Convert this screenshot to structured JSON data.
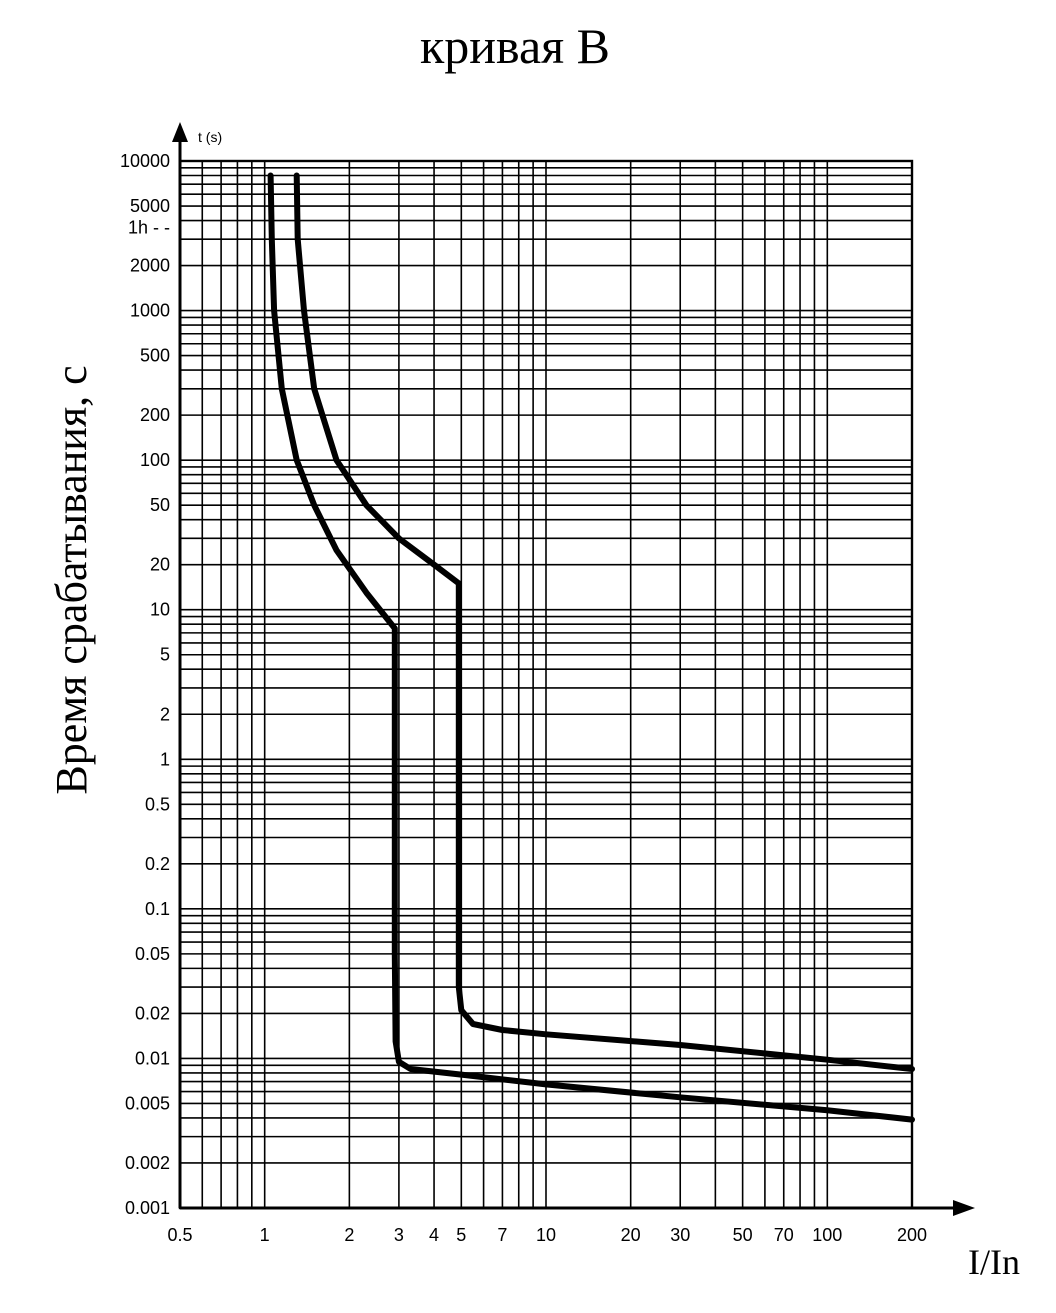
{
  "chart_data": {
    "type": "line",
    "title": "кривая B",
    "ylabel": "Время срабатывания, с",
    "xlabel": "I/In",
    "y_unit_label": "t (s)",
    "x_scale": "log",
    "y_scale": "log",
    "xlim": [
      0.5,
      200
    ],
    "ylim": [
      0.001,
      10000
    ],
    "grid": true,
    "x_ticks": [
      {
        "value": 0.5,
        "label": "0.5"
      },
      {
        "value": 1,
        "label": "1"
      },
      {
        "value": 2,
        "label": "2"
      },
      {
        "value": 3,
        "label": "3"
      },
      {
        "value": 4,
        "label": "4"
      },
      {
        "value": 5,
        "label": "5"
      },
      {
        "value": 7,
        "label": "7"
      },
      {
        "value": 10,
        "label": "10"
      },
      {
        "value": 20,
        "label": "20"
      },
      {
        "value": 30,
        "label": "30"
      },
      {
        "value": 50,
        "label": "50"
      },
      {
        "value": 70,
        "label": "70"
      },
      {
        "value": 100,
        "label": "100"
      },
      {
        "value": 200,
        "label": "200"
      }
    ],
    "y_ticks": [
      {
        "value": 10000,
        "label": "10000"
      },
      {
        "value": 5000,
        "label": "5000"
      },
      {
        "value": 3600,
        "label": "1h - -"
      },
      {
        "value": 2000,
        "label": "2000"
      },
      {
        "value": 1000,
        "label": "1000"
      },
      {
        "value": 500,
        "label": "500"
      },
      {
        "value": 200,
        "label": "200"
      },
      {
        "value": 100,
        "label": "100"
      },
      {
        "value": 50,
        "label": "50"
      },
      {
        "value": 20,
        "label": "20"
      },
      {
        "value": 10,
        "label": "10"
      },
      {
        "value": 5,
        "label": "5"
      },
      {
        "value": 2,
        "label": "2"
      },
      {
        "value": 1,
        "label": "1"
      },
      {
        "value": 0.5,
        "label": "0.5"
      },
      {
        "value": 0.2,
        "label": "0.2"
      },
      {
        "value": 0.1,
        "label": "0.1"
      },
      {
        "value": 0.05,
        "label": "0.05"
      },
      {
        "value": 0.02,
        "label": "0.02"
      },
      {
        "value": 0.01,
        "label": "0.01"
      },
      {
        "value": 0.005,
        "label": "0.005"
      },
      {
        "value": 0.002,
        "label": "0.002"
      },
      {
        "value": 0.001,
        "label": "0.001"
      }
    ],
    "series": [
      {
        "points": [
          [
            1.05,
            8000
          ],
          [
            1.06,
            3000
          ],
          [
            1.08,
            1000
          ],
          [
            1.15,
            300
          ],
          [
            1.3,
            100
          ],
          [
            1.5,
            50
          ],
          [
            1.8,
            25
          ],
          [
            2.3,
            13
          ],
          [
            2.9,
            7.5
          ],
          [
            2.9,
            0.05
          ],
          [
            2.92,
            0.013
          ],
          [
            3.0,
            0.0095
          ],
          [
            3.3,
            0.0085
          ],
          [
            5,
            0.0078
          ],
          [
            10,
            0.0067
          ],
          [
            30,
            0.0055
          ],
          [
            100,
            0.0045
          ],
          [
            200,
            0.0039
          ]
        ]
      },
      {
        "points": [
          [
            1.3,
            8000
          ],
          [
            1.31,
            3000
          ],
          [
            1.38,
            1000
          ],
          [
            1.5,
            300
          ],
          [
            1.8,
            100
          ],
          [
            2.3,
            50
          ],
          [
            3,
            30
          ],
          [
            4,
            20
          ],
          [
            4.9,
            15
          ],
          [
            4.9,
            0.2
          ],
          [
            4.9,
            0.03
          ],
          [
            5.0,
            0.021
          ],
          [
            5.5,
            0.017
          ],
          [
            7,
            0.0155
          ],
          [
            10,
            0.0145
          ],
          [
            30,
            0.0123
          ],
          [
            100,
            0.0098
          ],
          [
            200,
            0.0085
          ]
        ]
      }
    ]
  }
}
